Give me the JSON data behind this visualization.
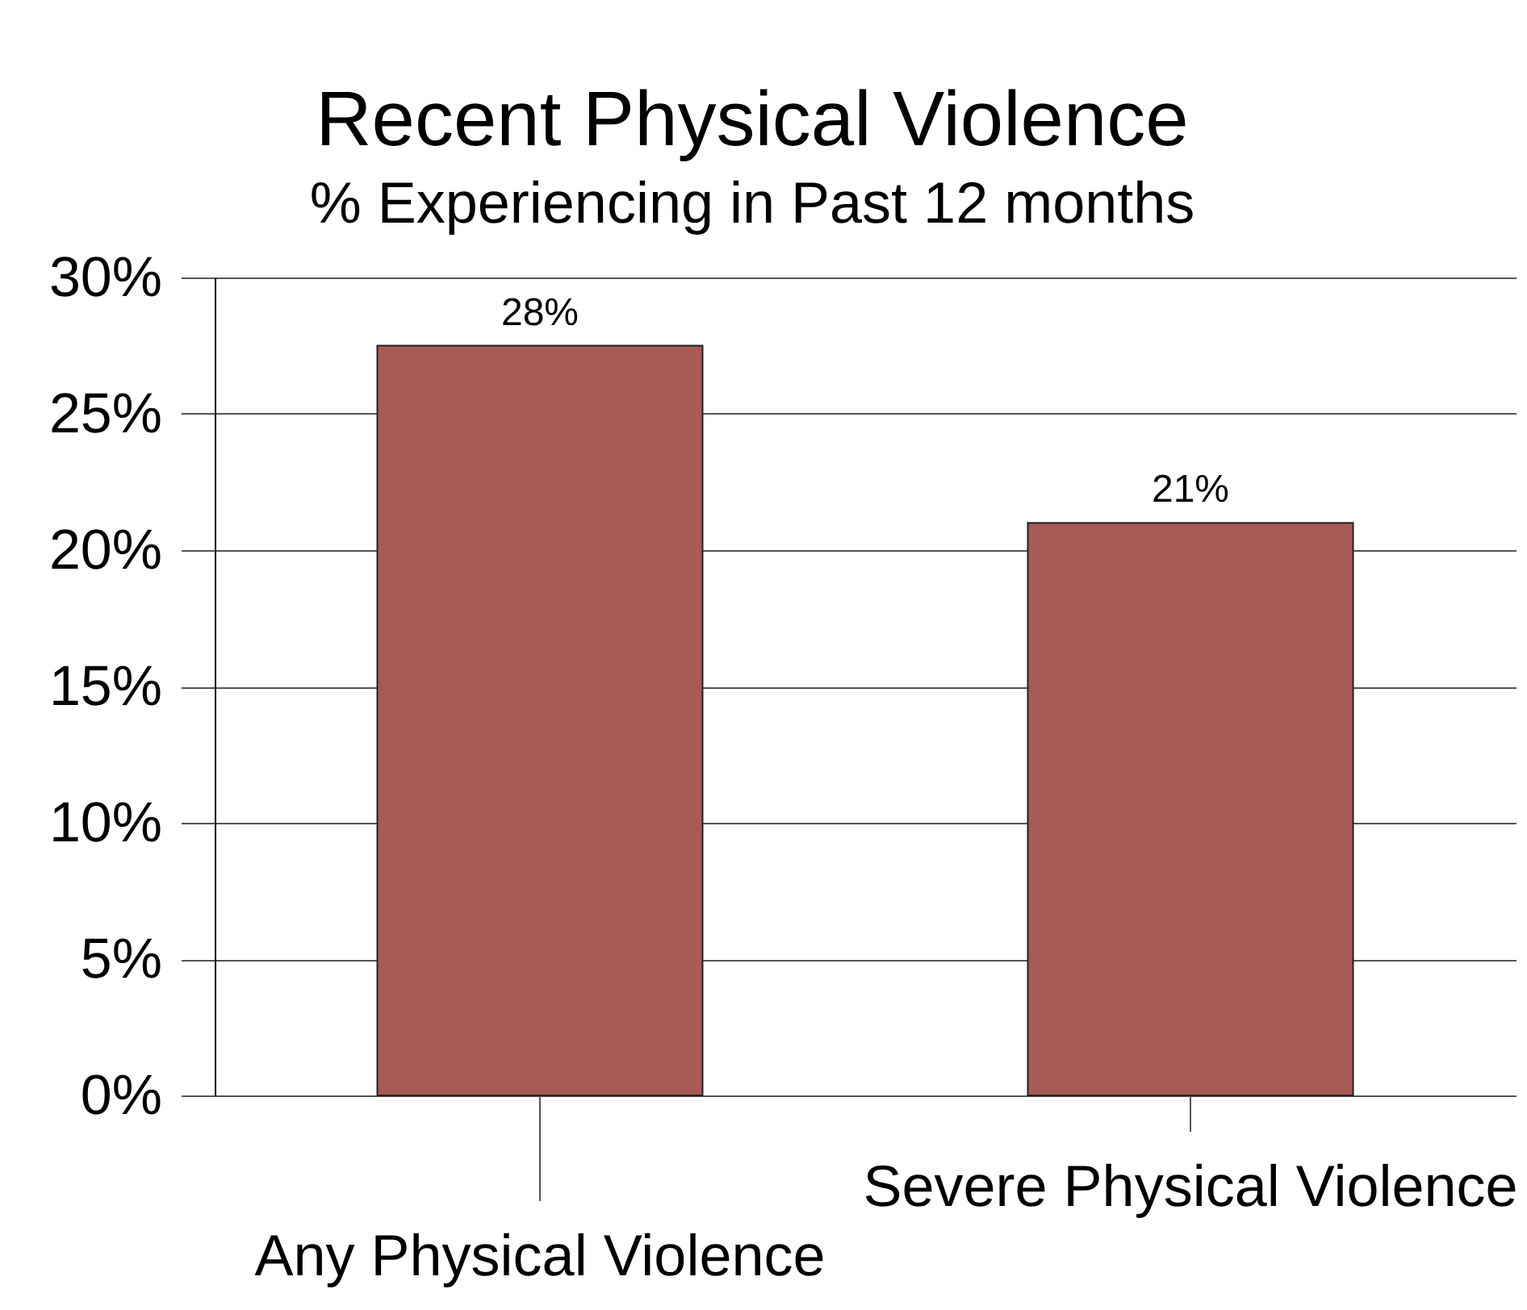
{
  "chart_data": {
    "type": "bar",
    "title": "Recent Physical Violence",
    "subtitle": "% Experiencing in Past 12 months",
    "categories": [
      "Any Physical Violence",
      "Severe Physical Violence"
    ],
    "values": [
      27.5,
      21
    ],
    "value_labels": [
      "28%",
      "21%"
    ],
    "color": "#a85a55",
    "ylim": [
      0,
      30
    ],
    "yticks": [
      {
        "value": 0,
        "label": "0%"
      },
      {
        "value": 5,
        "label": "5%"
      },
      {
        "value": 10,
        "label": "10%"
      },
      {
        "value": 15,
        "label": "15%"
      },
      {
        "value": 20,
        "label": "20%"
      },
      {
        "value": 25,
        "label": "25%"
      },
      {
        "value": 30,
        "label": "30%"
      }
    ],
    "grid": "y"
  }
}
